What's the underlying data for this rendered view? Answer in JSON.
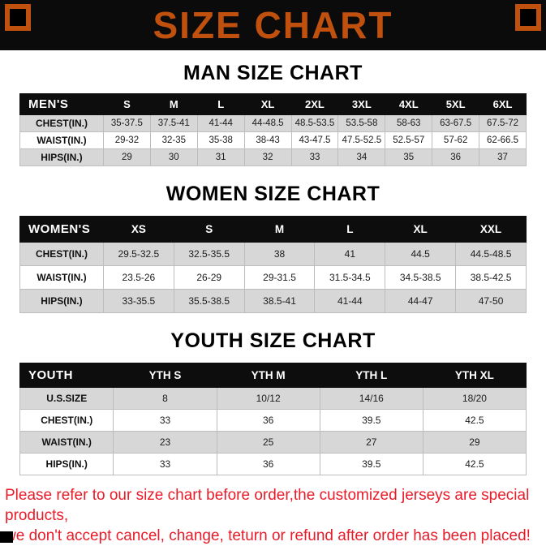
{
  "banner": {
    "title": "SIZE CHART"
  },
  "colors": {
    "banner_bg": "#0b0b0b",
    "header_bg": "#0d0d0d",
    "accent_orange": "#c0500e",
    "row_gray": "#d7d7d7",
    "notice_red": "#e81b29"
  },
  "sections": [
    {
      "heading": "MAN SIZE CHART",
      "table": {
        "header": [
          "MEN'S",
          "S",
          "M",
          "L",
          "XL",
          "2XL",
          "3XL",
          "4XL",
          "5XL",
          "6XL"
        ],
        "rows": [
          {
            "label": "CHEST(IN.)",
            "values": [
              "35-37.5",
              "37.5-41",
              "41-44",
              "44-48.5",
              "48.5-53.5",
              "53.5-58",
              "58-63",
              "63-67.5",
              "67.5-72"
            ]
          },
          {
            "label": "WAIST(IN.)",
            "values": [
              "29-32",
              "32-35",
              "35-38",
              "38-43",
              "43-47.5",
              "47.5-52.5",
              "52.5-57",
              "57-62",
              "62-66.5"
            ]
          },
          {
            "label": "HIPS(IN.)",
            "values": [
              "29",
              "30",
              "31",
              "32",
              "33",
              "34",
              "35",
              "36",
              "37"
            ]
          }
        ]
      }
    },
    {
      "heading": "WOMEN SIZE CHART",
      "table": {
        "header": [
          "WOMEN'S",
          "XS",
          "S",
          "M",
          "L",
          "XL",
          "XXL"
        ],
        "rows": [
          {
            "label": "CHEST(IN.)",
            "values": [
              "29.5-32.5",
              "32.5-35.5",
              "38",
              "41",
              "44.5",
              "44.5-48.5"
            ]
          },
          {
            "label": "WAIST(IN.)",
            "values": [
              "23.5-26",
              "26-29",
              "29-31.5",
              "31.5-34.5",
              "34.5-38.5",
              "38.5-42.5"
            ]
          },
          {
            "label": "HIPS(IN.)",
            "values": [
              "33-35.5",
              "35.5-38.5",
              "38.5-41",
              "41-44",
              "44-47",
              "47-50"
            ]
          }
        ]
      }
    },
    {
      "heading": "YOUTH SIZE CHART",
      "table": {
        "header": [
          "YOUTH",
          "YTH S",
          "YTH M",
          "YTH L",
          "YTH XL"
        ],
        "rows": [
          {
            "label": "U.S.SIZE",
            "values": [
              "8",
              "10/12",
              "14/16",
              "18/20"
            ]
          },
          {
            "label": "CHEST(IN.)",
            "values": [
              "33",
              "36",
              "39.5",
              "42.5"
            ]
          },
          {
            "label": "WAIST(IN.)",
            "values": [
              "23",
              "25",
              "27",
              "29"
            ]
          },
          {
            "label": "HIPS(IN.)",
            "values": [
              "33",
              "36",
              "39.5",
              "42.5"
            ]
          }
        ]
      }
    }
  ],
  "footer": {
    "line1": "Please refer to our size chart before order,the customized jerseys are special products,",
    "line2": "we don't accept cancel, change, teturn or refund after order has been placed!"
  }
}
